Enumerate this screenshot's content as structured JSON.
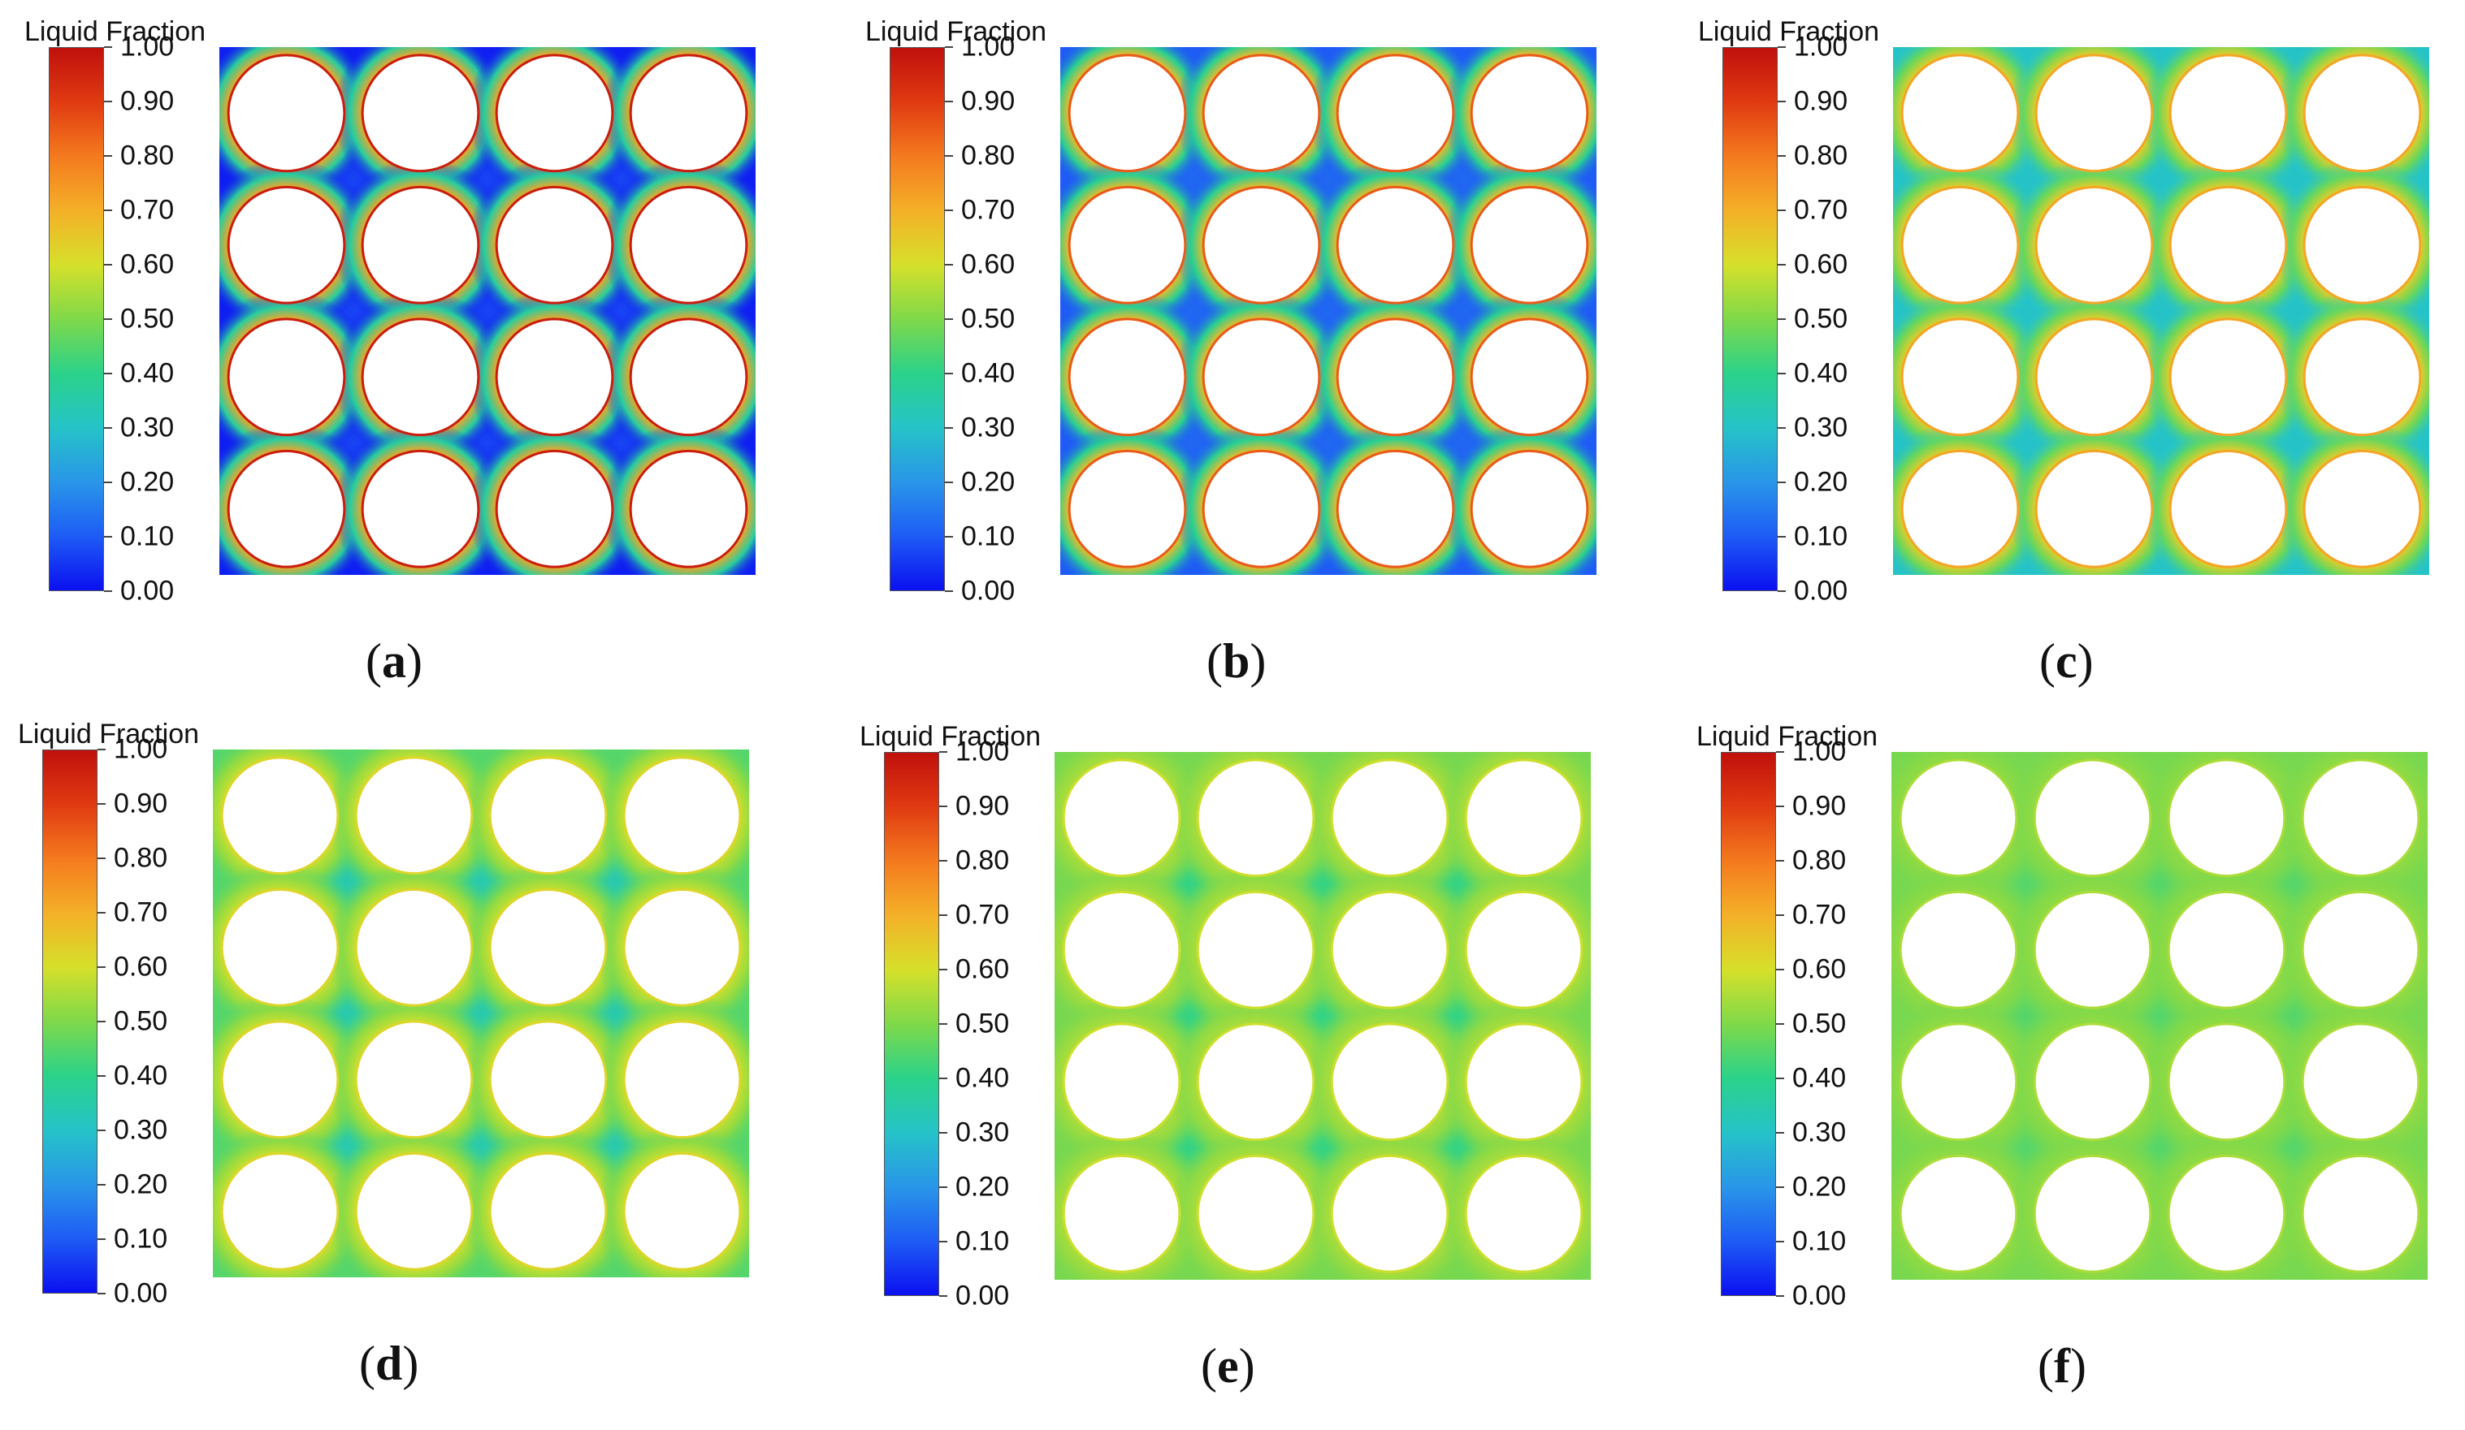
{
  "colorbar": {
    "title": "Liquid Fraction",
    "ticks": [
      "1.00",
      "0.90",
      "0.80",
      "0.70",
      "0.60",
      "0.50",
      "0.40",
      "0.30",
      "0.20",
      "0.10",
      "0.00"
    ],
    "colors": {
      "0.00": "#0b10f0",
      "0.10": "#1e5cf5",
      "0.20": "#2996e8",
      "0.30": "#25c3c8",
      "0.40": "#2bd28a",
      "0.50": "#7fd94a",
      "0.60": "#d6e02a",
      "0.70": "#f4b028",
      "0.80": "#f47a1e",
      "0.90": "#e03a12",
      "1.00": "#c0100c"
    }
  },
  "grid": {
    "rows": 4,
    "cols": 4
  },
  "panels": [
    {
      "label_letter": "a",
      "background_fraction": 0.02,
      "pocket_fraction": 0.07,
      "rim_fraction": 0.97,
      "halo_fraction": 0.72
    },
    {
      "label_letter": "b",
      "background_fraction": 0.1,
      "pocket_fraction": 0.12,
      "rim_fraction": 0.85,
      "halo_fraction": 0.68
    },
    {
      "label_letter": "c",
      "background_fraction": 0.3,
      "pocket_fraction": 0.3,
      "rim_fraction": 0.72,
      "halo_fraction": 0.64
    },
    {
      "label_letter": "d",
      "background_fraction": 0.45,
      "pocket_fraction": 0.34,
      "rim_fraction": 0.62,
      "halo_fraction": 0.58
    },
    {
      "label_letter": "e",
      "background_fraction": 0.49,
      "pocket_fraction": 0.41,
      "rim_fraction": 0.59,
      "halo_fraction": 0.55
    },
    {
      "label_letter": "f",
      "background_fraction": 0.49,
      "pocket_fraction": 0.45,
      "rim_fraction": 0.55,
      "halo_fraction": 0.52
    }
  ]
}
